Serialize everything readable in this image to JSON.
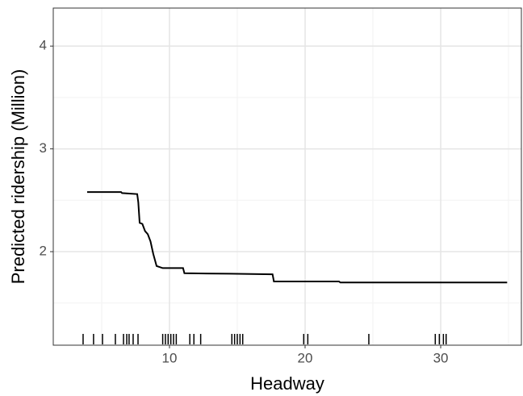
{
  "chart_data": {
    "type": "line",
    "xlabel": "Headway",
    "ylabel": "Predicted ridership (Million)",
    "x": [
      3.93,
      6.43,
      6.5,
      7.62,
      7.7,
      7.8,
      8.0,
      8.2,
      8.4,
      8.6,
      8.8,
      9.05,
      9.5,
      11.0,
      11.1,
      14.5,
      17.6,
      17.7,
      22.5,
      22.6,
      34.9
    ],
    "series": [
      {
        "color": "#000000",
        "values": [
          2.58,
          2.58,
          2.57,
          2.56,
          2.48,
          2.28,
          2.27,
          2.2,
          2.17,
          2.1,
          1.98,
          1.86,
          1.84,
          1.84,
          1.79,
          1.785,
          1.78,
          1.71,
          1.71,
          1.7,
          1.7
        ]
      }
    ],
    "rug": [
      3.63,
      4.4,
      5.06,
      6.01,
      6.61,
      6.85,
      7.02,
      7.32,
      7.68,
      9.5,
      9.7,
      9.9,
      10.1,
      10.3,
      10.5,
      11.5,
      11.8,
      12.3,
      14.6,
      14.8,
      15.0,
      15.2,
      15.4,
      19.9,
      20.2,
      24.7,
      29.6,
      29.9,
      30.2,
      30.4
    ],
    "xlim": [
      1.43,
      35.95
    ],
    "ylim": [
      1.09,
      4.37
    ],
    "xticks": [
      10,
      20,
      30
    ],
    "yticks": [
      2,
      3,
      4
    ],
    "xminor": [
      5,
      15,
      25,
      35
    ],
    "yminor": [
      1.5,
      2.5,
      3.5
    ],
    "grid": true
  }
}
